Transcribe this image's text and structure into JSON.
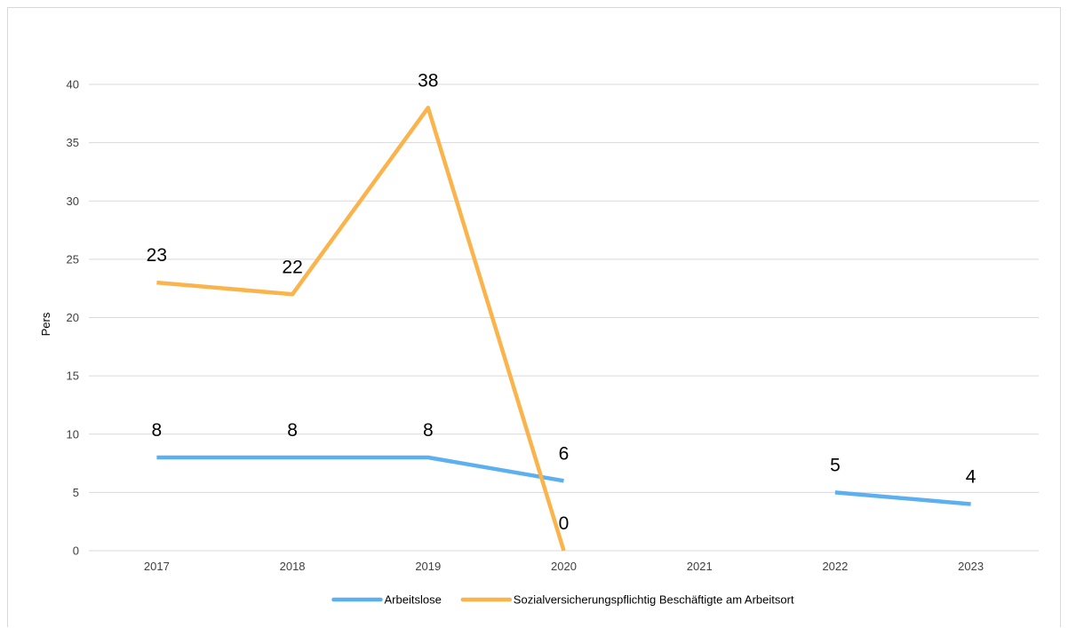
{
  "chart_data": {
    "type": "line",
    "title": "",
    "xlabel": "",
    "ylabel": "Pers",
    "categories": [
      "2017",
      "2018",
      "2019",
      "2020",
      "2021",
      "2022",
      "2023"
    ],
    "ylim": [
      0,
      40
    ],
    "yticks": [
      0,
      5,
      10,
      15,
      20,
      25,
      30,
      35,
      40
    ],
    "grid": true,
    "legend_position": "bottom",
    "series": [
      {
        "name": "Arbeitslose",
        "color": "#5cb0f0",
        "values": [
          8,
          8,
          8,
          6,
          null,
          5,
          4
        ],
        "labels": [
          "8",
          "8",
          "8",
          "6",
          null,
          "5",
          "4"
        ]
      },
      {
        "name": "Sozialversicherungspflichtig Beschäftigte am Arbeitsort",
        "color": "#fbb34c",
        "values": [
          23,
          22,
          38,
          0,
          null,
          null,
          null
        ],
        "labels": [
          "23",
          "22",
          "38",
          "0",
          null,
          null,
          null
        ]
      }
    ]
  }
}
